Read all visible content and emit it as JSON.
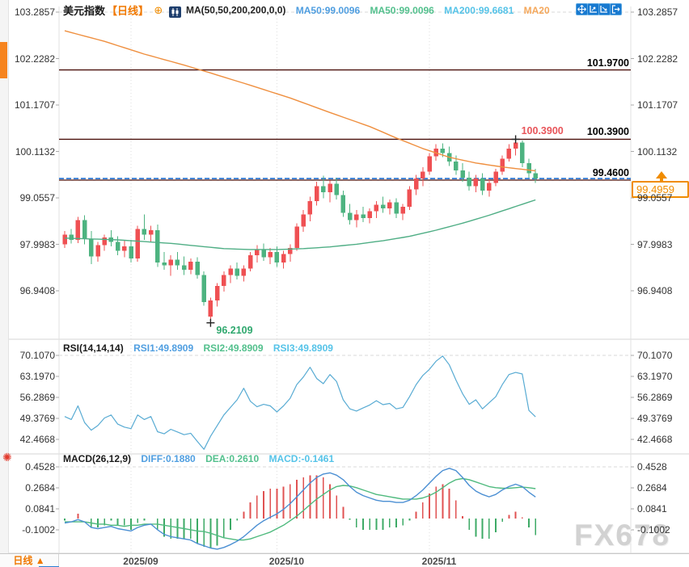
{
  "header": {
    "symbol": "美元指数",
    "period_tag": "【日线】",
    "ma_settings": "MA(50,50,200,200,0,0)",
    "ma_values": [
      {
        "label": "MA50:99.0096",
        "color": "#4f9ee0"
      },
      {
        "label": "MA50:99.0096",
        "color": "#53c08d"
      },
      {
        "label": "MA200:99.6681",
        "color": "#55c3e8"
      },
      {
        "label": "MA20",
        "color": "#f5a85c"
      }
    ]
  },
  "rsi_header": {
    "title": "RSI(14,14,14)",
    "values": [
      {
        "label": "RSI1:49.8909",
        "color": "#4f9ee0"
      },
      {
        "label": "RSI2:49.8909",
        "color": "#53c08d"
      },
      {
        "label": "RSI3:49.8909",
        "color": "#55c3e8"
      }
    ]
  },
  "macd_header": {
    "title": "MACD(26,12,9)",
    "values": [
      {
        "label": "DIFF:0.1880",
        "color": "#4f9ee0"
      },
      {
        "label": "DEA:0.2610",
        "color": "#53c08d"
      },
      {
        "label": "MACD:-0.1461",
        "color": "#55c3e8"
      }
    ]
  },
  "bottom": {
    "tab_label": "日线 ▲"
  },
  "watermark": "FX678",
  "price_badge": "99.4959",
  "colors": {
    "up": "#ef5053",
    "down": "#4db380",
    "ma50": "#4fae85",
    "ma200": "#ef8f3f",
    "rsi_line": "#58abd3",
    "diff_line": "#4b8fd3",
    "dea_line": "#4fba7e",
    "hist_up": "#e05252",
    "hist_down": "#3daa66",
    "hline": "#4a100c",
    "price_line": "#1e6fd0",
    "badge": "#f08c00"
  },
  "chart_data": {
    "type": "candlestick",
    "x_labels": [
      "2025/09",
      "2025/10",
      "2025/11"
    ],
    "month_start_indices": [
      10,
      32,
      55
    ],
    "price_panel": {
      "y_axis": [
        "103.2857",
        "102.2282",
        "101.1707",
        "100.1132",
        "99.0557",
        "97.9983",
        "96.9408"
      ],
      "hlines": [
        {
          "label": "101.9700",
          "price": 101.97
        },
        {
          "label": "100.3900",
          "price": 100.39
        },
        {
          "label": "99.4600",
          "price": 99.46
        }
      ],
      "price_line": {
        "label": "99.4959",
        "price": 99.4959
      },
      "high_marker": {
        "label": "100.3900",
        "price": 100.39,
        "index": 68
      },
      "low_marker": {
        "label": "96.2109",
        "price": 96.2109,
        "index": 22
      },
      "ohlc": [
        [
          98.0,
          98.3,
          97.92,
          98.22
        ],
        [
          98.22,
          98.35,
          98.02,
          98.1
        ],
        [
          98.1,
          98.62,
          98.03,
          98.55
        ],
        [
          98.55,
          98.66,
          98.0,
          98.12
        ],
        [
          98.12,
          98.3,
          97.55,
          97.72
        ],
        [
          97.72,
          98.05,
          97.6,
          97.98
        ],
        [
          97.98,
          98.22,
          97.85,
          98.15
        ],
        [
          98.15,
          98.32,
          97.95,
          98.05
        ],
        [
          98.05,
          98.18,
          97.75,
          97.85
        ],
        [
          97.85,
          98.08,
          97.7,
          97.95
        ],
        [
          97.95,
          98.1,
          97.58,
          97.68
        ],
        [
          97.68,
          98.42,
          97.6,
          98.35
        ],
        [
          98.35,
          98.68,
          98.1,
          98.22
        ],
        [
          98.22,
          98.42,
          98.05,
          98.32
        ],
        [
          98.32,
          98.45,
          97.48,
          97.58
        ],
        [
          97.58,
          97.82,
          97.42,
          97.52
        ],
        [
          97.52,
          97.75,
          97.28,
          97.65
        ],
        [
          97.65,
          97.82,
          97.42,
          97.52
        ],
        [
          97.52,
          97.72,
          97.3,
          97.42
        ],
        [
          97.42,
          97.68,
          97.32,
          97.6
        ],
        [
          97.6,
          97.7,
          97.22,
          97.3
        ],
        [
          97.3,
          97.38,
          96.6,
          96.68
        ],
        [
          96.35,
          96.78,
          96.2109,
          96.72
        ],
        [
          96.72,
          97.12,
          96.58,
          97.05
        ],
        [
          97.05,
          97.38,
          96.92,
          97.3
        ],
        [
          97.3,
          97.52,
          97.12,
          97.45
        ],
        [
          97.45,
          97.58,
          97.2,
          97.28
        ],
        [
          97.28,
          97.52,
          97.15,
          97.45
        ],
        [
          97.45,
          97.82,
          97.38,
          97.75
        ],
        [
          97.75,
          97.98,
          97.58,
          97.88
        ],
        [
          97.88,
          98.02,
          97.62,
          97.7
        ],
        [
          97.7,
          97.92,
          97.55,
          97.82
        ],
        [
          97.82,
          97.95,
          97.48,
          97.58
        ],
        [
          97.58,
          97.85,
          97.45,
          97.78
        ],
        [
          97.78,
          98.0,
          97.6,
          97.92
        ],
        [
          97.92,
          98.48,
          97.85,
          98.4
        ],
        [
          98.4,
          98.78,
          98.28,
          98.68
        ],
        [
          98.68,
          99.08,
          98.52,
          98.98
        ],
        [
          98.98,
          99.42,
          98.88,
          99.32
        ],
        [
          99.32,
          99.56,
          99.05,
          99.18
        ],
        [
          99.18,
          99.45,
          98.95,
          99.38
        ],
        [
          99.38,
          99.52,
          99.02,
          99.12
        ],
        [
          99.12,
          99.22,
          98.62,
          98.72
        ],
        [
          98.72,
          98.92,
          98.45,
          98.55
        ],
        [
          98.55,
          98.78,
          98.38,
          98.68
        ],
        [
          98.68,
          98.85,
          98.5,
          98.6
        ],
        [
          98.6,
          98.82,
          98.48,
          98.75
        ],
        [
          98.75,
          98.98,
          98.6,
          98.9
        ],
        [
          98.9,
          99.08,
          98.72,
          98.82
        ],
        [
          98.82,
          99.02,
          98.68,
          98.95
        ],
        [
          98.95,
          99.05,
          98.6,
          98.7
        ],
        [
          98.7,
          98.92,
          98.55,
          98.85
        ],
        [
          98.85,
          99.32,
          98.78,
          99.25
        ],
        [
          99.25,
          99.58,
          99.12,
          99.5
        ],
        [
          99.5,
          99.75,
          99.32,
          99.65
        ],
        [
          99.65,
          100.08,
          99.58,
          100.0
        ],
        [
          100.0,
          100.28,
          99.9,
          100.18
        ],
        [
          100.18,
          100.3,
          99.98,
          100.08
        ],
        [
          100.08,
          100.22,
          99.78,
          99.88
        ],
        [
          99.88,
          100.02,
          99.58,
          99.68
        ],
        [
          99.68,
          99.85,
          99.42,
          99.52
        ],
        [
          99.52,
          99.65,
          99.22,
          99.32
        ],
        [
          99.32,
          99.58,
          99.18,
          99.5
        ],
        [
          99.5,
          99.62,
          99.12,
          99.22
        ],
        [
          99.22,
          99.48,
          99.08,
          99.4
        ],
        [
          99.4,
          99.72,
          99.32,
          99.65
        ],
        [
          99.65,
          100.02,
          99.58,
          99.95
        ],
        [
          99.95,
          100.28,
          99.88,
          100.18
        ],
        [
          100.18,
          100.39,
          100.02,
          100.32
        ],
        [
          100.32,
          100.36,
          99.75,
          99.85
        ],
        [
          99.85,
          99.95,
          99.52,
          99.62
        ],
        [
          99.62,
          99.72,
          99.4,
          99.5
        ]
      ],
      "ma50_anchors": [
        [
          0,
          98.14
        ],
        [
          8,
          98.1
        ],
        [
          16,
          98.02
        ],
        [
          20,
          97.96
        ],
        [
          24,
          97.9
        ],
        [
          28,
          97.88
        ],
        [
          32,
          97.88
        ],
        [
          36,
          97.9
        ],
        [
          40,
          97.94
        ],
        [
          44,
          98.0
        ],
        [
          48,
          98.08
        ],
        [
          52,
          98.18
        ],
        [
          56,
          98.32
        ],
        [
          60,
          98.48
        ],
        [
          64,
          98.66
        ],
        [
          68,
          98.86
        ],
        [
          71,
          99.01
        ]
      ],
      "ma200_anchors": [
        [
          0,
          102.86
        ],
        [
          6,
          102.62
        ],
        [
          12,
          102.33
        ],
        [
          18,
          102.08
        ],
        [
          22,
          101.9
        ],
        [
          28,
          101.62
        ],
        [
          34,
          101.33
        ],
        [
          40,
          101.0
        ],
        [
          46,
          100.68
        ],
        [
          50,
          100.42
        ],
        [
          54,
          100.18
        ],
        [
          58,
          99.98
        ],
        [
          62,
          99.85
        ],
        [
          66,
          99.76
        ],
        [
          71,
          99.67
        ]
      ]
    },
    "rsi_panel": {
      "y_axis": [
        "70.1070",
        "63.1970",
        "56.2869",
        "49.3769",
        "42.4668"
      ],
      "values": [
        50.0,
        49.0,
        53.5,
        48.0,
        45.5,
        47.0,
        49.5,
        50.5,
        47.5,
        46.5,
        46.0,
        50.5,
        49.0,
        50.0,
        45.0,
        44.3,
        45.8,
        44.9,
        44.0,
        44.5,
        41.8,
        39.2,
        43.5,
        47.0,
        50.5,
        53.0,
        55.5,
        59.3,
        55.0,
        53.2,
        54.0,
        53.5,
        51.5,
        53.5,
        56.0,
        60.5,
        63.0,
        66.2,
        62.5,
        60.8,
        63.8,
        61.5,
        55.5,
        52.5,
        51.8,
        52.8,
        53.8,
        55.2,
        53.9,
        54.3,
        52.5,
        53.0,
        56.5,
        60.5,
        63.5,
        65.5,
        68.2,
        69.9,
        67.0,
        62.0,
        57.5,
        54.0,
        55.5,
        52.5,
        54.5,
        56.5,
        60.5,
        63.8,
        64.5,
        64.0,
        52.0,
        49.89
      ]
    },
    "macd_panel": {
      "y_axis": [
        "0.4528",
        "0.2684",
        "0.0841",
        "-0.1002"
      ],
      "diff": [
        -0.04,
        -0.03,
        -0.01,
        -0.03,
        -0.08,
        -0.09,
        -0.08,
        -0.07,
        -0.09,
        -0.1,
        -0.11,
        -0.08,
        -0.06,
        -0.05,
        -0.1,
        -0.14,
        -0.16,
        -0.17,
        -0.18,
        -0.19,
        -0.22,
        -0.24,
        -0.26,
        -0.27,
        -0.255,
        -0.23,
        -0.2,
        -0.16,
        -0.11,
        -0.06,
        -0.02,
        0.01,
        0.04,
        0.08,
        0.13,
        0.19,
        0.25,
        0.31,
        0.36,
        0.39,
        0.4,
        0.38,
        0.34,
        0.28,
        0.23,
        0.2,
        0.18,
        0.16,
        0.15,
        0.15,
        0.14,
        0.14,
        0.16,
        0.2,
        0.25,
        0.31,
        0.37,
        0.42,
        0.44,
        0.42,
        0.36,
        0.29,
        0.24,
        0.21,
        0.19,
        0.21,
        0.25,
        0.28,
        0.3,
        0.28,
        0.23,
        0.188
      ],
      "dea": [
        -0.03,
        -0.03,
        -0.03,
        -0.03,
        -0.04,
        -0.05,
        -0.05,
        -0.06,
        -0.06,
        -0.07,
        -0.06,
        -0.06,
        -0.05,
        -0.05,
        -0.05,
        -0.06,
        -0.07,
        -0.08,
        -0.09,
        -0.1,
        -0.11,
        -0.115,
        -0.13,
        -0.15,
        -0.17,
        -0.18,
        -0.19,
        -0.19,
        -0.18,
        -0.16,
        -0.14,
        -0.12,
        -0.09,
        -0.06,
        -0.02,
        0.02,
        0.07,
        0.12,
        0.17,
        0.21,
        0.25,
        0.28,
        0.29,
        0.285,
        0.27,
        0.25,
        0.23,
        0.21,
        0.2,
        0.19,
        0.18,
        0.17,
        0.17,
        0.17,
        0.18,
        0.2,
        0.23,
        0.27,
        0.31,
        0.34,
        0.35,
        0.34,
        0.32,
        0.3,
        0.28,
        0.27,
        0.265,
        0.265,
        0.27,
        0.275,
        0.27,
        0.261
      ],
      "hist_formula": "2*(diff-dea)"
    }
  }
}
